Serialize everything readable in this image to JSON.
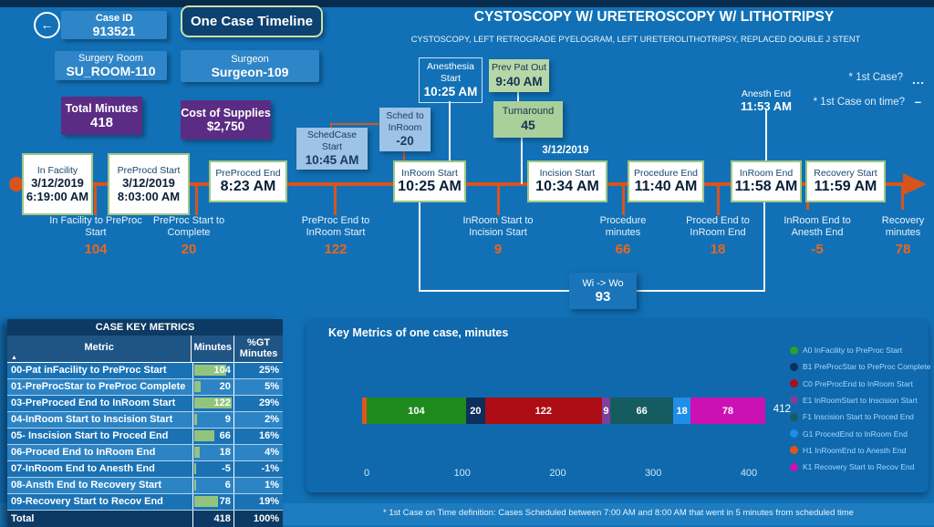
{
  "page": {
    "title": "CYSTOSCOPY W/ URETEROSCOPY W/ LITHOTRIPSY",
    "subtitle": "CYSTOSCOPY, LEFT RETROGRADE PYELOGRAM, LEFT URETEROLITHOTRIPSY, REPLACED DOUBLE J STENT",
    "footnote": "* 1st Case on Time definition:  Cases Scheduled between 7:00 AM and 8:00 AM that went in 5 minutes from scheduled time"
  },
  "icons": {
    "back": "←",
    "sort_asc": "▲",
    "ellipsis": "...",
    "dash": "–"
  },
  "header": {
    "button": "One Case Timeline",
    "case_id": {
      "label": "Case ID",
      "value": "913521"
    },
    "surgery_room": {
      "label": "Surgery Room",
      "value": "SU_ROOM-110"
    },
    "surgeon": {
      "label": "Surgeon",
      "value": "Surgeon-109"
    },
    "total_minutes": {
      "label": "Total Minutes",
      "value": "418"
    },
    "cost_supplies": {
      "label": "Cost of Supplies",
      "value": "$2,750"
    },
    "first_case": {
      "label": "* 1st Case?",
      "value": "..."
    },
    "first_case_on_time": {
      "label": "* 1st Case on time?",
      "value": "–"
    }
  },
  "timeline": {
    "milestones": [
      {
        "title": "In Facility",
        "line1": "3/12/2019",
        "line2": "6:19:00 AM"
      },
      {
        "title": "PreProcd Start",
        "line1": "3/12/2019",
        "line2": "8:03:00 AM"
      },
      {
        "title": "PreProced End",
        "time": "8:23 AM"
      },
      {
        "title": "InRoom Start",
        "time": "10:25 AM"
      },
      {
        "pre": "3/12/2019",
        "title": "Incision Start",
        "time": "10:34 AM"
      },
      {
        "title": "Procedure End",
        "time": "11:40 AM"
      },
      {
        "title": "InRoom End",
        "time": "11:58 AM"
      },
      {
        "title": "Recovery Start",
        "time": "11:59 AM"
      }
    ],
    "callouts": {
      "schedcase_start": {
        "title": "SchedCase Start",
        "value": "10:45 AM"
      },
      "sched_to_inroom": {
        "line1": "Sched to",
        "line2": "InRoom",
        "value": "-20"
      },
      "anesthesia_start": {
        "line1": "Anesthesia",
        "line2": "Start",
        "value": "10:25 AM"
      },
      "prev_pat_out": {
        "title": "Prev Pat Out",
        "value": "9:40 AM"
      },
      "turnaround": {
        "title": "Turnaround",
        "value": "45"
      },
      "anesth_end": {
        "title": "Anesth End",
        "value": "11:53 AM"
      },
      "wi_wo": {
        "title": "Wi -> Wo",
        "value": "93"
      }
    },
    "intervals": [
      {
        "label": "In Facility to PreProc Start",
        "value": "104"
      },
      {
        "label": "PreProc Start to Complete",
        "value": "20"
      },
      {
        "label": "PreProc End to InRoom Start",
        "value": "122"
      },
      {
        "label": "InRoom Start to Incision Start",
        "value": "9"
      },
      {
        "label": "Procedure minutes",
        "value": "66"
      },
      {
        "label": "Proced End to InRoom End",
        "value": "18"
      },
      {
        "label": "InRoom End to Anesth End",
        "value": "-5"
      },
      {
        "label": "Recovery minutes",
        "value": "78"
      }
    ]
  },
  "table": {
    "title": "CASE KEY METRICS",
    "columns": [
      "Metric",
      "Minutes",
      "%GT Minutes"
    ],
    "rows": [
      {
        "metric": "00-Pat inFacility to PreProc Start",
        "minutes": 104,
        "pct": "25%"
      },
      {
        "metric": "01-PreProcStar to PreProc Complete",
        "minutes": 20,
        "pct": "5%"
      },
      {
        "metric": "03-PreProced End to InRoom Start",
        "minutes": 122,
        "pct": "29%"
      },
      {
        "metric": "04-InRoom Start to Inscision Start",
        "minutes": 9,
        "pct": "2%"
      },
      {
        "metric": "05- Inscision Start to Proced End",
        "minutes": 66,
        "pct": "16%"
      },
      {
        "metric": "06-Proced End to InRoom End",
        "minutes": 18,
        "pct": "4%"
      },
      {
        "metric": "07-InRoom End to Anesth End",
        "minutes": -5,
        "pct": "-1%"
      },
      {
        "metric": "08-Ansth End to Recovery Start",
        "minutes": 6,
        "pct": "1%"
      },
      {
        "metric": "09-Recovery Start to Recov End",
        "minutes": 78,
        "pct": "19%"
      }
    ],
    "total": {
      "metric": "Total",
      "minutes": "418",
      "pct": "100%"
    }
  },
  "chart_data": {
    "type": "bar",
    "orientation": "horizontal-stacked",
    "title": "Key Metrics of one case, minutes",
    "x_ticks": [
      0,
      100,
      200,
      300,
      400
    ],
    "xlim": [
      -10,
      440
    ],
    "total_label": "412",
    "segments": [
      {
        "name": "H1 InRoomEnd to Anesth End",
        "value": -5,
        "color": "#e2541e",
        "show_label": false
      },
      {
        "name": "A0 InFacility to PreProc Start",
        "value": 104,
        "color": "#1e8a1e",
        "show_label": true
      },
      {
        "name": "B1 PreProcStar to PreProc Complete",
        "value": 20,
        "color": "#0d2f5e",
        "show_label": true
      },
      {
        "name": "C0 PreProcEnd to InRoom Start",
        "value": 122,
        "color": "#ad0d14",
        "show_label": true
      },
      {
        "name": "E1 InRoomStart to Inscision Start",
        "value": 9,
        "color": "#7e3f9d",
        "show_label": true
      },
      {
        "name": "F1 Inscision Start to Proced End",
        "value": 66,
        "color": "#155c60",
        "show_label": true
      },
      {
        "name": "G1 ProcedEnd to InRoom End",
        "value": 18,
        "color": "#1f8ee8",
        "show_label": true
      },
      {
        "name": "K1 Recovery Start to Recov End",
        "value": 78,
        "color": "#cb11b4",
        "show_label": true
      }
    ],
    "legend": [
      {
        "label": "A0 InFacility to PreProc Start",
        "color": "#2aa02a"
      },
      {
        "label": "B1 PreProcStar to PreProc Complete",
        "color": "#0d2f5e"
      },
      {
        "label": "C0 PreProcEnd to InRoom Start",
        "color": "#ad0d14"
      },
      {
        "label": "E1 InRoomStart to Inscision Start",
        "color": "#7e3f9d"
      },
      {
        "label": "F1  Inscision Start to Proced End",
        "color": "#155c60"
      },
      {
        "label": "G1 ProcedEnd to InRoom End",
        "color": "#1f8ee8"
      },
      {
        "label": "H1 InRoomEnd to Anesth End",
        "color": "#e2541e"
      },
      {
        "label": "K1 Recovery Start to Recov End",
        "color": "#cb11b4"
      }
    ]
  }
}
